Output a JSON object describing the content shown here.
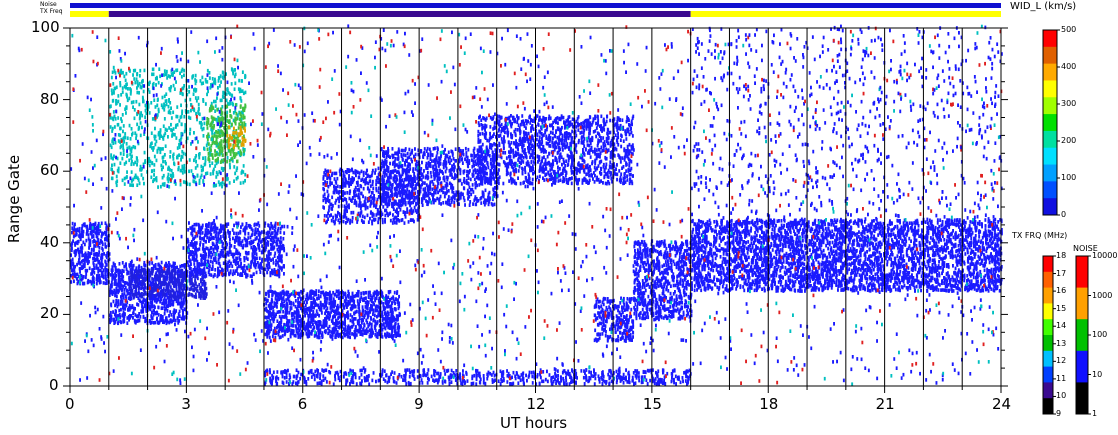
{
  "chart_data": {
    "type": "heatmap",
    "xlabel": "UT hours",
    "ylabel": "Range Gate",
    "x_ticks": [
      "0",
      "3",
      "6",
      "9",
      "12",
      "15",
      "18",
      "21",
      "24"
    ],
    "y_ticks": [
      "0",
      "20",
      "40",
      "60",
      "80",
      "100"
    ],
    "xlim": [
      0,
      24
    ],
    "ylim": [
      0,
      100
    ],
    "grid": "vertical hourly lines",
    "top_bars": {
      "noise_label": "Noise",
      "txfreq_label": "TX Freq",
      "noise_color": "#1010d0",
      "txfreq_segments": [
        {
          "from": 0,
          "to": 1,
          "color": "#ffff00"
        },
        {
          "from": 1,
          "to": 16,
          "color": "#3a0a90"
        },
        {
          "from": 16,
          "to": 24,
          "color": "#ffff00"
        }
      ]
    },
    "velocity_colorbar": {
      "title": "WID_L (km/s)",
      "ticks": [
        "500",
        "400",
        "300",
        "200",
        "100",
        "0"
      ],
      "range": [
        0,
        500
      ],
      "colors": [
        "#ff0000",
        "#e06000",
        "#ffaa00",
        "#ffff00",
        "#a0ff00",
        "#00e000",
        "#00e0a0",
        "#00e0ff",
        "#00a0ff",
        "#0050ff",
        "#1010e0"
      ]
    },
    "txfreq_colorbar": {
      "title": "TX FRQ (MHz)",
      "ticks": [
        "18",
        "17",
        "16",
        "15",
        "14",
        "13",
        "12",
        "11",
        "10",
        "9"
      ],
      "colors": [
        "#ff0000",
        "#ff6000",
        "#ffa000",
        "#ffff00",
        "#40ff00",
        "#00c000",
        "#00c0ff",
        "#0040ff",
        "#3a0a90",
        "#000000"
      ]
    },
    "noise_colorbar": {
      "title": "NOISE",
      "ticks": [
        "10000",
        "1000",
        "100",
        "10",
        "1"
      ],
      "colors": [
        "#ff0000",
        "#ffa000",
        "#00c000",
        "#1010ff",
        "#000000"
      ]
    },
    "regions": [
      {
        "t0": 0.0,
        "t1": 1.0,
        "g0": 28,
        "g1": 45,
        "color": "#1a1aff",
        "density": 0.75
      },
      {
        "t0": 1.0,
        "t1": 3.0,
        "g0": 17,
        "g1": 34,
        "color": "#1a1aff",
        "density": 0.75
      },
      {
        "t0": 1.5,
        "t1": 3.5,
        "g0": 24,
        "g1": 32,
        "color": "#2020e0",
        "density": 0.85
      },
      {
        "t0": 3.0,
        "t1": 5.5,
        "g0": 30,
        "g1": 45,
        "color": "#1a1aff",
        "density": 0.7
      },
      {
        "t0": 5.0,
        "t1": 8.5,
        "g0": 13,
        "g1": 26,
        "color": "#1a1aff",
        "density": 0.9
      },
      {
        "t0": 6.5,
        "t1": 9.0,
        "g0": 45,
        "g1": 60,
        "color": "#1a1aff",
        "density": 0.55
      },
      {
        "t0": 8.0,
        "t1": 11.0,
        "g0": 50,
        "g1": 66,
        "color": "#1a1aff",
        "density": 0.6
      },
      {
        "t0": 10.5,
        "t1": 14.5,
        "g0": 56,
        "g1": 75,
        "color": "#1a1aff",
        "density": 0.6
      },
      {
        "t0": 13.5,
        "t1": 14.5,
        "g0": 12,
        "g1": 24,
        "color": "#1a1aff",
        "density": 0.7
      },
      {
        "t0": 14.5,
        "t1": 16.0,
        "g0": 18,
        "g1": 40,
        "color": "#1a1aff",
        "density": 0.75
      },
      {
        "t0": 16.0,
        "t1": 24.0,
        "g0": 26,
        "g1": 46,
        "color": "#1a1aff",
        "density": 0.8
      },
      {
        "t0": 5.0,
        "t1": 16.0,
        "g0": 0,
        "g1": 4,
        "color": "#1a1aff",
        "density": 0.5
      },
      {
        "t0": 1.0,
        "t1": 4.5,
        "g0": 55,
        "g1": 88,
        "color": "#00c0c0",
        "density": 0.25
      },
      {
        "t0": 3.5,
        "t1": 4.5,
        "g0": 62,
        "g1": 78,
        "color": "#40c040",
        "density": 0.45
      },
      {
        "t0": 4.0,
        "t1": 4.5,
        "g0": 66,
        "g1": 72,
        "color": "#e0a000",
        "density": 0.4
      },
      {
        "t0": 0.0,
        "t1": 24.0,
        "g0": 0,
        "g1": 100,
        "color": "#1a1aff",
        "density": 0.015
      },
      {
        "t0": 0.0,
        "t1": 24.0,
        "g0": 0,
        "g1": 100,
        "color": "#e02020",
        "density": 0.006
      },
      {
        "t0": 0.0,
        "t1": 24.0,
        "g0": 0,
        "g1": 100,
        "color": "#00c0c0",
        "density": 0.004
      },
      {
        "t0": 16.0,
        "t1": 24.0,
        "g0": 46,
        "g1": 100,
        "color": "#1a1aff",
        "density": 0.05
      }
    ]
  }
}
